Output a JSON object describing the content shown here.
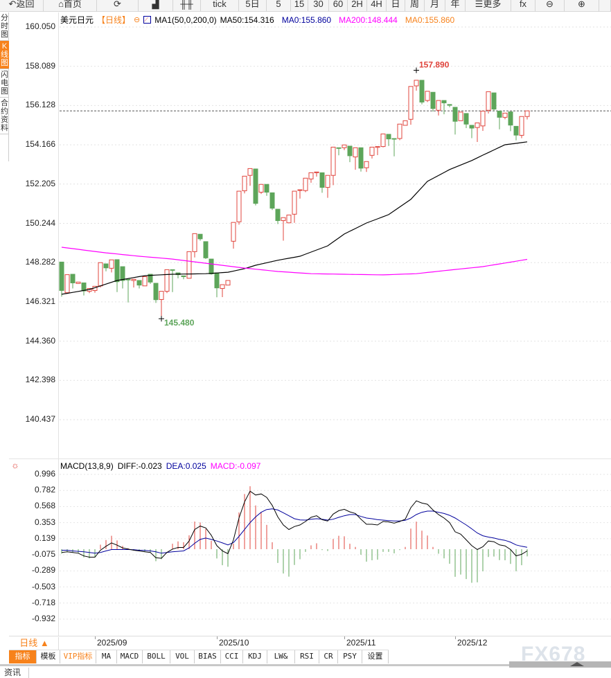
{
  "toolbar": {
    "items": [
      {
        "label": "↶返回",
        "icon": "back-icon"
      },
      {
        "label": "⌂首页",
        "icon": "home-icon"
      },
      {
        "label": "⟳",
        "icon": "refresh-icon"
      },
      {
        "label": "▟",
        "icon": "chart-icon"
      },
      {
        "label": "╫╫",
        "icon": "candlestick-icon"
      },
      {
        "label": "tick"
      },
      {
        "label": "5日"
      },
      {
        "label": "5"
      },
      {
        "label": "15"
      },
      {
        "label": "30"
      },
      {
        "label": "60"
      },
      {
        "label": "2H"
      },
      {
        "label": "4H"
      },
      {
        "label": "日"
      },
      {
        "label": "周"
      },
      {
        "label": "月"
      },
      {
        "label": "年"
      },
      {
        "label": "☰更多",
        "icon": "menu-icon"
      },
      {
        "label": "fx",
        "icon": "function-icon"
      },
      {
        "label": "⊖",
        "icon": "zoom-out-icon"
      },
      {
        "label": "⊕",
        "icon": "zoom-in-icon"
      },
      {
        "label": ""
      }
    ]
  },
  "sidebar": {
    "items": [
      {
        "label": "分时图"
      },
      {
        "label": "K线图",
        "active": true
      },
      {
        "label": "闪电图"
      },
      {
        "label": "合约资料"
      }
    ]
  },
  "legend": {
    "symbol": "美元日元",
    "period": "【日线】",
    "indicator": "MA1(50,0,200,0)",
    "ma50": "MA50:154.316",
    "ma0": "MA0:155.860",
    "ma200": "MA200:148.444",
    "ma0b": "MA0:155.860"
  },
  "macd_legend": {
    "name": "MACD(13,8,9)",
    "diff": "DIFF:-0.023",
    "dea": "DEA:0.025",
    "macd": "MACD:-0.097"
  },
  "colors": {
    "up": "#e0443c",
    "down": "#5da55a",
    "ma50": "#000000",
    "ma200": "#ff00ff",
    "last_price": "#1a6fd8",
    "diff": "#000000",
    "dea": "#00009c",
    "accent": "#f7821b"
  },
  "bottom": {
    "period_button": "日线 ▲",
    "news_tab": "资讯",
    "watermark": "FX678",
    "tabs": [
      {
        "label": "指标",
        "active": true
      },
      {
        "label": "模板"
      },
      {
        "label": "VIP指标",
        "vip": true
      },
      {
        "label": "MA"
      },
      {
        "label": "MACD"
      },
      {
        "label": "BOLL"
      },
      {
        "label": "VOL"
      },
      {
        "label": "BIAS"
      },
      {
        "label": "CCI"
      },
      {
        "label": "KDJ"
      },
      {
        "label": "LW&"
      },
      {
        "label": "RSI"
      },
      {
        "label": "CR"
      },
      {
        "label": "PSY"
      },
      {
        "label": "设置"
      }
    ]
  },
  "chart_data": [
    {
      "type": "candlestick",
      "title": "美元日元",
      "ylim": [
        140.437,
        160.05
      ],
      "yticks": [
        "160.050",
        "158.089",
        "156.128",
        "154.166",
        "152.205",
        "150.244",
        "148.282",
        "146.321",
        "144.360",
        "142.398",
        "140.437"
      ],
      "xticks": [
        {
          "label": "2025/09",
          "index": 6
        },
        {
          "label": "2025/10",
          "index": 28
        },
        {
          "label": "2025/11",
          "index": 51
        },
        {
          "label": "2025/12",
          "index": 71
        }
      ],
      "last_price": 155.86,
      "annotations": [
        {
          "label": "157.890",
          "index": 64,
          "value": 157.89,
          "type": "high"
        },
        {
          "label": "145.480",
          "index": 18,
          "value": 145.48,
          "type": "low"
        }
      ],
      "ohlc": [
        [
          148.31,
          148.74,
          146.58,
          146.89
        ],
        [
          146.78,
          147.91,
          146.76,
          147.68
        ],
        [
          147.7,
          147.85,
          146.99,
          147.27
        ],
        [
          147.24,
          148.14,
          147.22,
          147.31
        ],
        [
          147.27,
          147.45,
          146.64,
          146.87
        ],
        [
          146.85,
          147.39,
          146.76,
          146.99
        ],
        [
          146.89,
          147.38,
          146.78,
          147.1
        ],
        [
          147.12,
          148.91,
          147.04,
          148.28
        ],
        [
          148.22,
          149.12,
          147.85,
          148.02
        ],
        [
          148.0,
          148.72,
          147.79,
          148.42
        ],
        [
          148.43,
          148.49,
          146.81,
          147.33
        ],
        [
          148.08,
          148.57,
          146.99,
          147.39
        ],
        [
          147.45,
          147.48,
          146.29,
          147.43
        ],
        [
          147.39,
          147.62,
          147.04,
          147.45
        ],
        [
          147.39,
          148.14,
          146.99,
          147.16
        ],
        [
          147.12,
          148.05,
          147.12,
          147.58
        ],
        [
          147.7,
          147.74,
          147.22,
          147.31
        ],
        [
          147.25,
          147.54,
          146.27,
          146.43
        ],
        [
          146.44,
          146.87,
          145.48,
          146.85
        ],
        [
          146.85,
          148.25,
          146.76,
          147.93
        ],
        [
          147.93,
          148.25,
          146.81,
          147.92
        ],
        [
          147.77,
          148.37,
          147.5,
          147.68
        ],
        [
          147.62,
          147.91,
          147.45,
          147.58
        ],
        [
          147.5,
          148.89,
          147.5,
          148.83
        ],
        [
          148.83,
          149.93,
          148.54,
          149.73
        ],
        [
          149.7,
          149.93,
          149.38,
          149.47
        ],
        [
          149.33,
          149.35,
          148.46,
          148.52
        ],
        [
          148.46,
          148.81,
          147.68,
          147.72
        ],
        [
          147.77,
          148.2,
          146.55,
          147.02
        ],
        [
          146.99,
          147.48,
          146.56,
          147.18
        ],
        [
          147.16,
          147.79,
          147.16,
          147.39
        ],
        [
          149.35,
          150.42,
          148.98,
          150.29
        ],
        [
          150.32,
          152.0,
          150.18,
          151.85
        ],
        [
          151.87,
          152.96,
          151.74,
          152.6
        ],
        [
          152.64,
          153.21,
          152.12,
          152.98
        ],
        [
          152.96,
          153.24,
          151.14,
          151.24
        ],
        [
          151.8,
          152.4,
          151.71,
          152.19
        ],
        [
          152.19,
          152.58,
          151.62,
          151.8
        ],
        [
          151.77,
          151.85,
          150.91,
          151.0
        ],
        [
          150.95,
          151.37,
          150.21,
          150.38
        ],
        [
          150.38,
          150.58,
          149.38,
          150.53
        ],
        [
          150.27,
          151.16,
          150.27,
          150.66
        ],
        [
          150.7,
          152.17,
          150.27,
          151.85
        ],
        [
          151.89,
          152.17,
          151.48,
          151.92
        ],
        [
          151.88,
          152.79,
          151.8,
          152.5
        ],
        [
          152.46,
          153.04,
          152.27,
          152.77
        ],
        [
          152.77,
          153.24,
          152.58,
          152.81
        ],
        [
          152.77,
          152.77,
          151.77,
          152.04
        ],
        [
          152.04,
          152.96,
          151.52,
          152.64
        ],
        [
          152.64,
          154.42,
          152.15,
          154.05
        ],
        [
          154.02,
          154.37,
          153.64,
          154.01
        ],
        [
          154.02,
          154.27,
          153.9,
          154.16
        ],
        [
          154.1,
          154.45,
          153.3,
          153.62
        ],
        [
          153.56,
          154.34,
          152.92,
          154.02
        ],
        [
          154.02,
          154.1,
          152.83,
          153.0
        ],
        [
          153.02,
          153.58,
          152.81,
          153.33
        ],
        [
          153.64,
          154.25,
          153.48,
          154.05
        ],
        [
          154.04,
          154.42,
          153.65,
          154.08
        ],
        [
          154.08,
          155.02,
          154.04,
          154.71
        ],
        [
          154.69,
          154.98,
          154.11,
          154.46
        ],
        [
          154.48,
          154.65,
          153.59,
          154.45
        ],
        [
          154.48,
          155.31,
          154.4,
          155.2
        ],
        [
          155.14,
          155.69,
          155.14,
          155.37
        ],
        [
          155.44,
          157.13,
          155.17,
          157.08
        ],
        [
          157.11,
          157.89,
          156.87,
          157.39
        ],
        [
          157.39,
          157.54,
          156.19,
          156.3
        ],
        [
          156.38,
          157.17,
          156.3,
          156.84
        ],
        [
          156.79,
          156.96,
          155.83,
          155.98
        ],
        [
          155.89,
          156.73,
          155.63,
          156.38
        ],
        [
          156.38,
          156.38,
          155.69,
          156.26
        ],
        [
          156.18,
          156.56,
          156.04,
          156.14
        ],
        [
          156.04,
          156.13,
          154.68,
          155.34
        ],
        [
          155.37,
          156.13,
          155.37,
          155.8
        ],
        [
          155.73,
          155.86,
          155.0,
          155.2
        ],
        [
          155.14,
          155.52,
          154.5,
          155.0
        ],
        [
          155.03,
          155.54,
          154.31,
          155.26
        ],
        [
          155.11,
          155.92,
          154.86,
          155.85
        ],
        [
          155.89,
          156.93,
          155.73,
          156.82
        ],
        [
          156.76,
          156.9,
          155.86,
          155.95
        ],
        [
          155.85,
          156.13,
          154.94,
          155.54
        ],
        [
          155.54,
          156.13,
          155.44,
          155.75
        ],
        [
          155.81,
          155.96,
          154.85,
          155.15
        ],
        [
          155.09,
          155.11,
          154.39,
          154.65
        ],
        [
          154.64,
          155.73,
          154.5,
          155.58
        ],
        [
          155.58,
          155.92,
          155.43,
          155.86
        ]
      ],
      "series": [
        {
          "name": "MA50",
          "points": [
            [
              0,
              146.7
            ],
            [
              5,
              146.94
            ],
            [
              10,
              147.39
            ],
            [
              15,
              147.63
            ],
            [
              20,
              147.7
            ],
            [
              26,
              147.73
            ],
            [
              30,
              147.8
            ],
            [
              33,
              147.98
            ],
            [
              35,
              148.15
            ],
            [
              39,
              148.4
            ],
            [
              43,
              148.6
            ],
            [
              48,
              149.12
            ],
            [
              51,
              149.71
            ],
            [
              55,
              150.26
            ],
            [
              59,
              150.68
            ],
            [
              63,
              151.44
            ],
            [
              66,
              152.34
            ],
            [
              70,
              152.93
            ],
            [
              74,
              153.38
            ],
            [
              76,
              153.65
            ],
            [
              80,
              154.17
            ],
            [
              82,
              154.24
            ],
            [
              84,
              154.316
            ]
          ]
        },
        {
          "name": "MA200",
          "points": [
            [
              0,
              149.05
            ],
            [
              8,
              148.77
            ],
            [
              14,
              148.6
            ],
            [
              20,
              148.46
            ],
            [
              26,
              148.25
            ],
            [
              33,
              148.01
            ],
            [
              39,
              147.84
            ],
            [
              45,
              147.73
            ],
            [
              51,
              147.7
            ],
            [
              58,
              147.67
            ],
            [
              64,
              147.73
            ],
            [
              70,
              147.91
            ],
            [
              76,
              148.08
            ],
            [
              84,
              148.444
            ]
          ]
        }
      ]
    },
    {
      "type": "macd",
      "title": "MACD(13,8,9)",
      "ylim": [
        -0.932,
        0.996
      ],
      "yticks": [
        "0.996",
        "0.782",
        "0.568",
        "0.353",
        "0.139",
        "-0.075",
        "-0.289",
        "-0.503",
        "-0.718",
        "-0.932"
      ],
      "diff": [
        -0.044,
        -0.035,
        -0.044,
        -0.054,
        -0.09,
        -0.106,
        -0.106,
        -0.014,
        0.038,
        0.084,
        0.053,
        0.017,
        0.001,
        -0.014,
        -0.023,
        -0.035,
        -0.044,
        -0.115,
        -0.121,
        -0.044,
        0.001,
        0.023,
        0.023,
        0.109,
        0.262,
        0.308,
        0.283,
        0.185,
        0.047,
        -0.023,
        -0.06,
        0.124,
        0.415,
        0.629,
        0.773,
        0.721,
        0.736,
        0.69,
        0.583,
        0.43,
        0.323,
        0.262,
        0.301,
        0.323,
        0.369,
        0.424,
        0.445,
        0.393,
        0.375,
        0.467,
        0.513,
        0.531,
        0.497,
        0.476,
        0.399,
        0.332,
        0.332,
        0.323,
        0.369,
        0.363,
        0.347,
        0.369,
        0.399,
        0.552,
        0.644,
        0.614,
        0.598,
        0.522,
        0.461,
        0.415,
        0.354,
        0.231,
        0.2,
        0.124,
        0.047,
        -0.005,
        0.032,
        0.109,
        0.099,
        0.057,
        0.044,
        -0.005,
        -0.09,
        -0.069,
        -0.023
      ],
      "dea": [
        -0.014,
        -0.014,
        -0.023,
        -0.029,
        -0.035,
        -0.044,
        -0.054,
        -0.044,
        -0.023,
        -0.005,
        -0.005,
        -0.005,
        -0.005,
        -0.008,
        -0.014,
        -0.017,
        -0.023,
        -0.035,
        -0.054,
        -0.044,
        -0.035,
        -0.029,
        -0.023,
        0.017,
        0.078,
        0.13,
        0.148,
        0.13,
        0.109,
        0.084,
        0.057,
        0.087,
        0.17,
        0.262,
        0.354,
        0.43,
        0.491,
        0.528,
        0.537,
        0.522,
        0.485,
        0.445,
        0.406,
        0.39,
        0.387,
        0.399,
        0.406,
        0.399,
        0.387,
        0.399,
        0.424,
        0.445,
        0.461,
        0.461,
        0.436,
        0.415,
        0.406,
        0.393,
        0.387,
        0.381,
        0.375,
        0.375,
        0.384,
        0.415,
        0.461,
        0.491,
        0.507,
        0.507,
        0.491,
        0.476,
        0.451,
        0.415,
        0.369,
        0.323,
        0.271,
        0.216,
        0.179,
        0.161,
        0.148,
        0.13,
        0.118,
        0.093,
        0.057,
        0.038,
        0.025
      ]
    }
  ]
}
